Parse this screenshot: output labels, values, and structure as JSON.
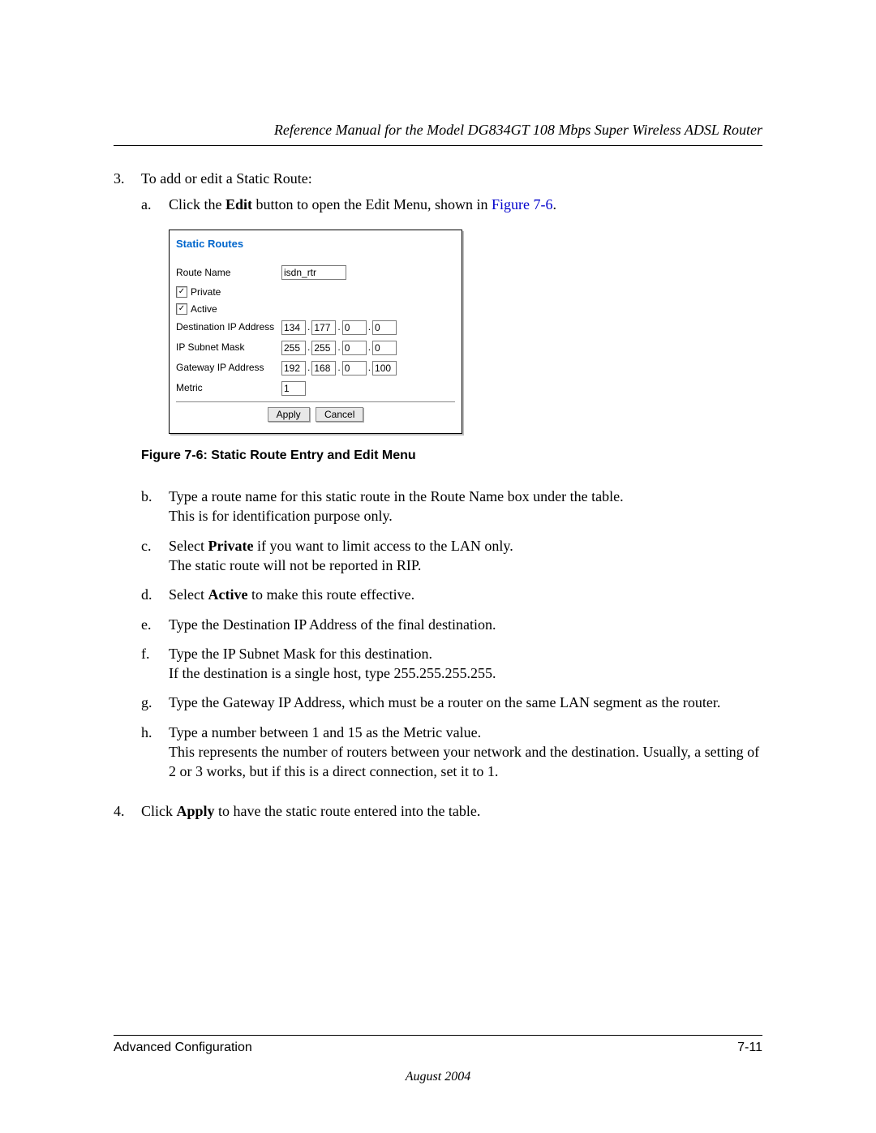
{
  "header": {
    "title": "Reference Manual for the Model DG834GT 108 Mbps Super Wireless ADSL Router"
  },
  "steps": {
    "three": {
      "num": "3.",
      "text": "To add or edit a Static Route:",
      "sub": {
        "a": {
          "letter": "a.",
          "pre": "Click the ",
          "bold": "Edit",
          "mid": " button to open the Edit Menu, shown in ",
          "link": "Figure 7-6",
          "post": "."
        },
        "b": {
          "letter": "b.",
          "line1": "Type a route name for this static route in the Route Name box under the table.",
          "line2": "This is for identification purpose only."
        },
        "c": {
          "letter": "c.",
          "pre": "Select ",
          "bold": "Private",
          "post": " if you want to limit access to the LAN only.",
          "line2": "The static route will not be reported in RIP."
        },
        "d": {
          "letter": "d.",
          "pre": "Select ",
          "bold": "Active",
          "post": " to make this route effective."
        },
        "e": {
          "letter": "e.",
          "text": "Type the Destination IP Address of the final destination."
        },
        "f": {
          "letter": "f.",
          "line1": "Type the IP Subnet Mask for this destination.",
          "line2": "If the destination is a single host, type 255.255.255.255."
        },
        "g": {
          "letter": "g.",
          "text": "Type the Gateway IP Address, which must be a router on the same LAN segment as the router."
        },
        "h": {
          "letter": "h.",
          "line1": "Type a number between 1 and 15 as the Metric value.",
          "line2": "This represents the number of routers between your network and the destination. Usually, a setting of 2 or 3 works, but if this is a direct connection, set it to 1."
        }
      }
    },
    "four": {
      "num": "4.",
      "pre": "Click ",
      "bold": "Apply",
      "post": " to have the static route entered into the table."
    }
  },
  "figure": {
    "caption": "Figure 7-6:  Static Route Entry and Edit Menu",
    "panel_title": "Static Routes",
    "labels": {
      "route_name": "Route Name",
      "private": "Private",
      "active": "Active",
      "dest_ip": "Destination IP Address",
      "subnet": "IP Subnet Mask",
      "gateway": "Gateway IP Address",
      "metric": "Metric"
    },
    "values": {
      "route_name": "isdn_rtr",
      "private_checked": "✓",
      "active_checked": "✓",
      "dest": [
        "134",
        "177",
        "0",
        "0"
      ],
      "mask": [
        "255",
        "255",
        "0",
        "0"
      ],
      "gw": [
        "192",
        "168",
        "0",
        "100"
      ],
      "metric": "1",
      "dot": "."
    },
    "buttons": {
      "apply": "Apply",
      "cancel": "Cancel"
    }
  },
  "footer": {
    "left": "Advanced Configuration",
    "right": "7-11",
    "date": "August 2004"
  }
}
